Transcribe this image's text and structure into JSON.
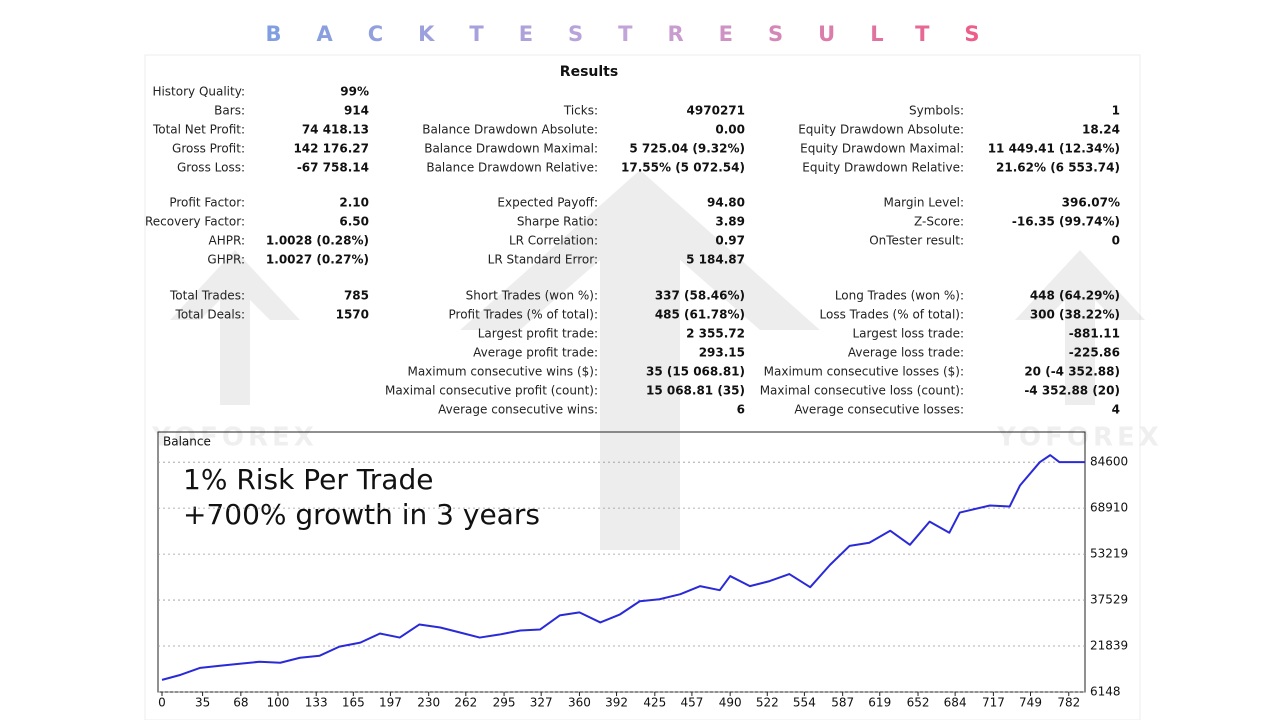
{
  "header": {
    "title": "BACKTESTRESULTS",
    "watermark": "YOFOREX"
  },
  "report": {
    "heading": "Results",
    "sections": [
      {
        "rows": [
          [
            {
              "label": "History Quality:",
              "value": "99%"
            },
            null,
            null
          ],
          [
            {
              "label": "Bars:",
              "value": "914"
            },
            {
              "label": "Ticks:",
              "value": "4970271"
            },
            {
              "label": "Symbols:",
              "value": "1"
            }
          ],
          [
            {
              "label": "Total Net Profit:",
              "value": "74 418.13"
            },
            {
              "label": "Balance Drawdown Absolute:",
              "value": "0.00"
            },
            {
              "label": "Equity Drawdown Absolute:",
              "value": "18.24"
            }
          ],
          [
            {
              "label": "Gross Profit:",
              "value": "142 176.27"
            },
            {
              "label": "Balance Drawdown Maximal:",
              "value": "5 725.04 (9.32%)"
            },
            {
              "label": "Equity Drawdown Maximal:",
              "value": "11 449.41 (12.34%)"
            }
          ],
          [
            {
              "label": "Gross Loss:",
              "value": "-67 758.14"
            },
            {
              "label": "Balance Drawdown Relative:",
              "value": "17.55% (5 072.54)"
            },
            {
              "label": "Equity Drawdown Relative:",
              "value": "21.62% (6 553.74)"
            }
          ]
        ]
      },
      {
        "rows": [
          [
            {
              "label": "Profit Factor:",
              "value": "2.10"
            },
            {
              "label": "Expected Payoff:",
              "value": "94.80"
            },
            {
              "label": "Margin Level:",
              "value": "396.07%"
            }
          ],
          [
            {
              "label": "Recovery Factor:",
              "value": "6.50"
            },
            {
              "label": "Sharpe Ratio:",
              "value": "3.89"
            },
            {
              "label": "Z-Score:",
              "value": "-16.35 (99.74%)"
            }
          ],
          [
            {
              "label": "AHPR:",
              "value": "1.0028 (0.28%)"
            },
            {
              "label": "LR Correlation:",
              "value": "0.97"
            },
            {
              "label": "OnTester result:",
              "value": "0"
            }
          ],
          [
            {
              "label": "GHPR:",
              "value": "1.0027 (0.27%)"
            },
            {
              "label": "LR Standard Error:",
              "value": "5 184.87"
            },
            null
          ]
        ]
      },
      {
        "rows": [
          [
            {
              "label": "Total Trades:",
              "value": "785"
            },
            {
              "label": "Short Trades (won %):",
              "value": "337 (58.46%)"
            },
            {
              "label": "Long Trades (won %):",
              "value": "448 (64.29%)"
            }
          ],
          [
            {
              "label": "Total Deals:",
              "value": "1570"
            },
            {
              "label": "Profit Trades (% of total):",
              "value": "485 (61.78%)"
            },
            {
              "label": "Loss Trades (% of total):",
              "value": "300 (38.22%)"
            }
          ],
          [
            null,
            {
              "label": "Largest profit trade:",
              "value": "2 355.72"
            },
            {
              "label": "Largest loss trade:",
              "value": "-881.11"
            }
          ],
          [
            null,
            {
              "label": "Average profit trade:",
              "value": "293.15"
            },
            {
              "label": "Average loss trade:",
              "value": "-225.86"
            }
          ],
          [
            null,
            {
              "label": "Maximum consecutive wins ($):",
              "value": "35 (15 068.81)"
            },
            {
              "label": "Maximum consecutive losses ($):",
              "value": "20 (-4 352.88)"
            }
          ],
          [
            null,
            {
              "label": "Maximal consecutive profit (count):",
              "value": "15 068.81 (35)"
            },
            {
              "label": "Maximal consecutive loss (count):",
              "value": "-4 352.88 (20)"
            }
          ],
          [
            null,
            {
              "label": "Average consecutive wins:",
              "value": "6"
            },
            {
              "label": "Average consecutive losses:",
              "value": "4"
            }
          ]
        ]
      }
    ]
  },
  "chart_data": {
    "type": "line",
    "title": "Balance",
    "annotations": [
      "1% Risk Per Trade",
      "+700% growth in 3 years"
    ],
    "x": [
      0,
      16,
      33,
      50,
      67,
      84,
      102,
      119,
      136,
      153,
      171,
      188,
      205,
      222,
      240,
      257,
      274,
      291,
      309,
      326,
      343,
      360,
      378,
      395,
      412,
      429,
      447,
      464,
      481,
      490,
      507,
      524,
      541,
      559,
      576,
      593,
      610,
      628,
      645,
      662,
      679,
      688,
      714,
      731,
      740,
      757,
      766,
      774,
      796
    ],
    "series": [
      {
        "name": "Balance",
        "color": "#2a2ad8",
        "values": [
          10280,
          12000,
          14400,
          15100,
          15780,
          16470,
          16130,
          17850,
          18540,
          21630,
          23010,
          26110,
          24730,
          29200,
          28170,
          26450,
          24730,
          25760,
          27140,
          27480,
          32300,
          33330,
          29890,
          32640,
          37120,
          37810,
          39530,
          42280,
          40900,
          45720,
          42280,
          44000,
          46410,
          41930,
          49500,
          56040,
          57080,
          61200,
          56390,
          64300,
          60520,
          67400,
          69810,
          69460,
          76690,
          84600,
          87010,
          84600,
          84600
        ]
      }
    ],
    "xlim": [
      0,
      796
    ],
    "ylim": [
      6148,
      94900
    ],
    "xticks": [
      0,
      35,
      68,
      100,
      133,
      165,
      197,
      230,
      262,
      295,
      327,
      360,
      392,
      425,
      457,
      490,
      522,
      554,
      587,
      619,
      652,
      684,
      717,
      749,
      782
    ],
    "yticks": [
      6148,
      21839,
      37529,
      53219,
      68910,
      84600
    ],
    "grid": true
  }
}
